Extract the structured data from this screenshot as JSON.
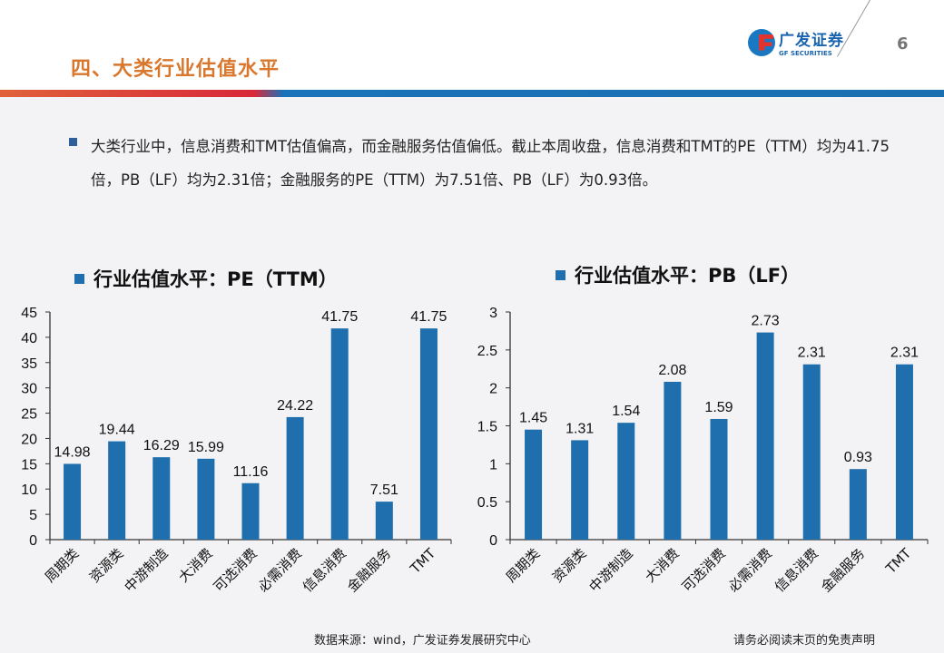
{
  "header": {
    "title": "四、大类行业估值水平",
    "logo_cn": "广发证券",
    "logo_en": "GF SECURITIES",
    "page_number": "6"
  },
  "summary": "大类行业中，信息消费和TMT估值偏高，而金融服务估值偏低。截止本周收盘，信息消费和TMT的PE（TTM）均为41.75倍，PB（LF）均为2.31倍；金融服务的PE（TTM）为7.51倍、PB（LF）为0.93倍。",
  "footer": {
    "source": "数据来源：wind，广发证券发展研究中心",
    "disclaimer": "请务必阅读末页的免责声明"
  },
  "colors": {
    "bar": "#1f6fae",
    "title": "#d9772c"
  },
  "chart_data": [
    {
      "type": "bar",
      "legend": "行业估值水平：PE（TTM）",
      "categories": [
        "周期类",
        "资源类",
        "中游制造",
        "大消费",
        "可选消费",
        "必需消费",
        "信息消费",
        "金融服务",
        "TMT"
      ],
      "values": [
        14.98,
        19.44,
        16.29,
        15.99,
        11.16,
        24.22,
        41.75,
        7.51,
        41.75
      ],
      "labels": [
        "14.98",
        "19.44",
        "16.29",
        "15.99",
        "11.16",
        "24.22",
        "41.75",
        "7.51",
        "41.75"
      ],
      "ylim": [
        0,
        45
      ],
      "yticks": [
        "0",
        "5",
        "10",
        "15",
        "20",
        "25",
        "30",
        "35",
        "40",
        "45"
      ],
      "grid": false
    },
    {
      "type": "bar",
      "legend": "行业估值水平：PB（LF）",
      "categories": [
        "周期类",
        "资源类",
        "中游制造",
        "大消费",
        "可选消费",
        "必需消费",
        "信息消费",
        "金融服务",
        "TMT"
      ],
      "values": [
        1.45,
        1.31,
        1.54,
        2.08,
        1.59,
        2.73,
        2.31,
        0.93,
        2.31
      ],
      "labels": [
        "1.45",
        "1.31",
        "1.54",
        "2.08",
        "1.59",
        "2.73",
        "2.31",
        "0.93",
        "2.31"
      ],
      "ylim": [
        0,
        3
      ],
      "yticks": [
        "0",
        "0.5",
        "1",
        "1.5",
        "2",
        "2.5",
        "3"
      ],
      "grid": false
    }
  ]
}
